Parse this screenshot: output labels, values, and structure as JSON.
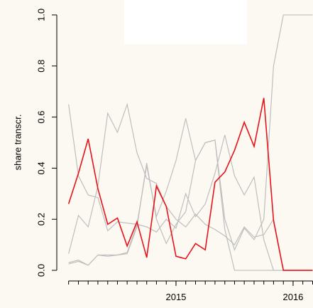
{
  "chart_data": {
    "type": "line",
    "y_label": "share transcr.",
    "x": [
      2014.083,
      2014.167,
      2014.25,
      2014.333,
      2014.417,
      2014.5,
      2014.583,
      2014.667,
      2014.75,
      2014.833,
      2014.917,
      2015,
      2015.083,
      2015.167,
      2015.25,
      2015.333,
      2015.417,
      2015.5,
      2015.583,
      2015.667,
      2015.75,
      2015.833,
      2015.917,
      2016,
      2016.083,
      2016.167
    ],
    "series": [
      {
        "color": "#bebebe",
        "values": [
          0.65,
          0.37,
          0.295,
          0.285,
          0.155,
          0.19,
          0.185,
          0.18,
          0.17,
          0.15,
          0.2,
          0.165,
          0.3,
          0.21,
          0.26,
          0.38,
          0.53,
          0.37,
          0.295,
          0.365,
          0.12,
          0,
          0,
          0,
          0,
          0
        ]
      },
      {
        "color": "#bebebe",
        "values": [
          0.065,
          0.215,
          0.17,
          0.33,
          0.615,
          0.54,
          0.65,
          0.46,
          0.36,
          0.34,
          0.25,
          0.2,
          0.17,
          0.22,
          0.18,
          0.16,
          0.135,
          0.1,
          0.17,
          0.13,
          0.14,
          0.2,
          0,
          0,
          0,
          0
        ]
      },
      {
        "color": "#bebebe",
        "values": [
          0.025,
          0.035,
          0.02,
          0.06,
          0.055,
          0.06,
          0.065,
          0.17,
          0.42,
          0.2,
          0.105,
          0.18,
          0.23,
          0.43,
          0.5,
          0.51,
          0.16,
          0,
          0,
          0,
          0,
          0,
          0,
          0,
          0,
          0
        ]
      },
      {
        "color": "#bebebe",
        "values": [
          0.03,
          0.04,
          0.02,
          0.06,
          0.06,
          0.06,
          0.07,
          0.18,
          0.41,
          0.21,
          0.31,
          0.43,
          0.595,
          0.43,
          0.5,
          0.51,
          0.2,
          0.08,
          0.165,
          0.12,
          0.2,
          0.8,
          1,
          1,
          1,
          1
        ]
      },
      {
        "color": "#e8121a",
        "values": [
          0.26,
          0.38,
          0.515,
          0.32,
          0.18,
          0.205,
          0.095,
          0.19,
          0.05,
          0.33,
          0.25,
          0.055,
          0.045,
          0.105,
          0.08,
          0.345,
          0.385,
          0.47,
          0.58,
          0.485,
          0.675,
          0.195,
          0,
          0,
          0,
          0
        ]
      }
    ],
    "xlim": [
      2013.982,
      2016.17
    ],
    "xticks": [
      {
        "value": 2015,
        "label": "2015"
      },
      {
        "value": 2016,
        "label": "2016"
      }
    ],
    "ylim": [
      -0.04,
      1.04
    ],
    "yticks": [
      {
        "value": 0,
        "label": "0.0"
      },
      0.2,
      0.4,
      0.6,
      0.8,
      {
        "value": 1,
        "label": "1.0"
      }
    ],
    "grid": false
  }
}
